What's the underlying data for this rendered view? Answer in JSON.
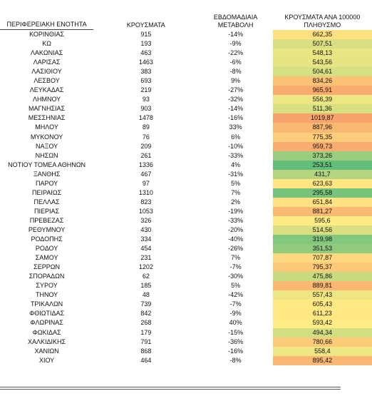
{
  "table": {
    "header": [
      "ΠΕΡΙΦΕΡΕΙΑΚΗ ΕΝΟΤΗΤΑ",
      "ΚΡΟΥΣΜΑΤΑ",
      "ΕΒΔΟΜΑΔΙΑΙΑ ΜΕΤΑΒΟΛΗ",
      "ΚΡΟΥΣΜΑΤΑ ΑΝΑ 100000 ΠΛΗΘΥΣΜΟ"
    ],
    "color_scale": [
      "#63be7b",
      "#ffeb84",
      "#f8a26c"
    ],
    "rows": [
      [
        "ΚΟΡΙΝΘΙΑΣ",
        "915",
        "-14%",
        "662,35"
      ],
      [
        "ΚΩ",
        "193",
        "-9%",
        "507,51"
      ],
      [
        "ΛΑΚΩΝΙΑΣ",
        "463",
        "-22%",
        "548,13"
      ],
      [
        "ΛΑΡΙΣΑΣ",
        "1463",
        "-6%",
        "543,56"
      ],
      [
        "ΛΑΣΙΘΙΟΥ",
        "383",
        "-8%",
        "504,61"
      ],
      [
        "ΛΕΣΒΟΥ",
        "693",
        "9%",
        "834,26"
      ],
      [
        "ΛΕΥΚΑΔΑΣ",
        "219",
        "-27%",
        "965,91"
      ],
      [
        "ΛΗΜΝΟΥ",
        "93",
        "-32%",
        "556,39"
      ],
      [
        "ΜΑΓΝΗΣΙΑΣ",
        "903",
        "-14%",
        "511,36"
      ],
      [
        "ΜΕΣΣΗΝΙΑΣ",
        "1478",
        "-16%",
        "1019,87"
      ],
      [
        "ΜΗΛΟΥ",
        "89",
        "33%",
        "887,96"
      ],
      [
        "ΜΥΚΟΝΟΥ",
        "76",
        "6%",
        "775,35"
      ],
      [
        "ΝΑΞΟΥ",
        "209",
        "-10%",
        "959,73"
      ],
      [
        "ΝΗΣΩΝ",
        "261",
        "-33%",
        "373,26"
      ],
      [
        "ΝΟΤΙΟΥ ΤΟΜΕΑ ΑΘΗΝΩΝ",
        "1336",
        "4%",
        "253,51"
      ],
      [
        "ΞΑΝΘΗΣ",
        "467",
        "-31%",
        "431,7"
      ],
      [
        "ΠΑΡΟΥ",
        "97",
        "5%",
        "623,63"
      ],
      [
        "ΠΕΙΡΑΙΩΣ",
        "1310",
        "7%",
        "295,58"
      ],
      [
        "ΠΕΛΛΑΣ",
        "823",
        "2%",
        "651,84"
      ],
      [
        "ΠΙΕΡΙΑΣ",
        "1053",
        "-19%",
        "881,27"
      ],
      [
        "ΠΡΕΒΕΖΑΣ",
        "326",
        "-33%",
        "595,6"
      ],
      [
        "ΡΕΘΥΜΝΟΥ",
        "430",
        "-20%",
        "514,56"
      ],
      [
        "ΡΟΔΟΠΗΣ",
        "334",
        "-40%",
        "319,98"
      ],
      [
        "ΡΟΔΟΥ",
        "454",
        "-26%",
        "351,53"
      ],
      [
        "ΣΑΜΟΥ",
        "231",
        "7%",
        "707,87"
      ],
      [
        "ΣΕΡΡΩΝ",
        "1202",
        "-7%",
        "795,37"
      ],
      [
        "ΣΠΟΡΑΔΩΝ",
        "62",
        "-30%",
        "475,86"
      ],
      [
        "ΣΥΡΟΥ",
        "185",
        "5%",
        "889,81"
      ],
      [
        "ΤΗΝΟΥ",
        "48",
        "-42%",
        "557,43"
      ],
      [
        "ΤΡΙΚΑΛΩΝ",
        "739",
        "-7%",
        "605,43"
      ],
      [
        "ΦΘΙΩΤΙΔΑΣ",
        "842",
        "-9%",
        "611,23"
      ],
      [
        "ΦΛΩΡΙΝΑΣ",
        "268",
        "40%",
        "593,42"
      ],
      [
        "ΦΩΚΙΔΑΣ",
        "179",
        "-15%",
        "494,34"
      ],
      [
        "ΧΑΛΚΙΔΙΚΗΣ",
        "791",
        "-36%",
        "780,66"
      ],
      [
        "ΧΑΝΙΩΝ",
        "868",
        "-16%",
        "558,4"
      ],
      [
        "ΧΙΟΥ",
        "464",
        "-8%",
        "895,42"
      ]
    ]
  }
}
